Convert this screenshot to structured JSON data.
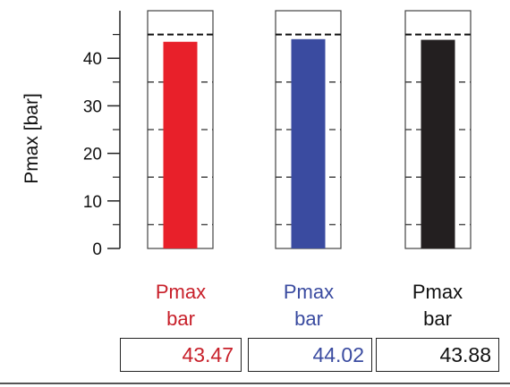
{
  "chart_data": {
    "type": "bar",
    "ylabel": "Pmax [bar]",
    "ylim": [
      0,
      50
    ],
    "yticks": [
      0,
      10,
      20,
      30,
      40
    ],
    "reference_line": 45,
    "series": [
      {
        "label_line1": "Pmax",
        "label_line2": "bar",
        "value": 43.47,
        "display": "43.47",
        "color": "#e8202a",
        "text_color": "#c8202a"
      },
      {
        "label_line1": "Pmax",
        "label_line2": "bar",
        "value": 44.02,
        "display": "44.02",
        "color": "#3a4ba0",
        "text_color": "#3a4ba0"
      },
      {
        "label_line1": "Pmax",
        "label_line2": "bar",
        "value": 43.88,
        "display": "43.88",
        "color": "#231f20",
        "text_color": "#111111"
      }
    ]
  }
}
